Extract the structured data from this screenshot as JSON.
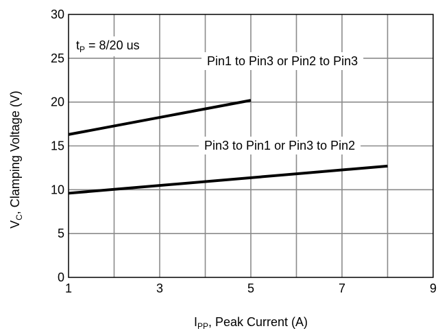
{
  "chart_data": {
    "type": "line",
    "xlabel": {
      "main": "I",
      "sub": "PP",
      "rest": ", Peak Current (A)"
    },
    "ylabel": {
      "main": "V",
      "sub": "C",
      "rest": ", Clamping Voltage (V)"
    },
    "xlim": [
      1,
      9
    ],
    "ylim": [
      0,
      30
    ],
    "x_ticks": [
      1,
      3,
      5,
      7,
      9
    ],
    "y_ticks": [
      0,
      5,
      10,
      15,
      20,
      25,
      30
    ],
    "x_grid": [
      2,
      3,
      4,
      5,
      6,
      7,
      8
    ],
    "y_grid": [
      5,
      10,
      15,
      20,
      25
    ],
    "grid": true,
    "annotation": {
      "main": "t",
      "sub": "P",
      "rest": " = 8/20 us"
    },
    "series": [
      {
        "name": "Pin1 to Pin3 or Pin2 to Pin3",
        "x": [
          1,
          5
        ],
        "y": [
          16.3,
          20.2
        ]
      },
      {
        "name": "Pin3 to Pin1 or Pin3 to Pin2",
        "x": [
          1,
          8
        ],
        "y": [
          9.6,
          12.7
        ]
      }
    ]
  }
}
